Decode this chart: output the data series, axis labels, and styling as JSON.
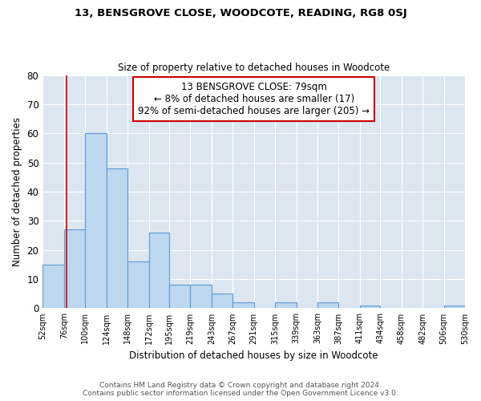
{
  "title": "13, BENSGROVE CLOSE, WOODCOTE, READING, RG8 0SJ",
  "subtitle": "Size of property relative to detached houses in Woodcote",
  "xlabel": "Distribution of detached houses by size in Woodcote",
  "ylabel": "Number of detached properties",
  "footnote1": "Contains HM Land Registry data © Crown copyright and database right 2024.",
  "footnote2": "Contains public sector information licensed under the Open Government Licence v3.0.",
  "bin_labels": [
    "52sqm",
    "76sqm",
    "100sqm",
    "124sqm",
    "148sqm",
    "172sqm",
    "195sqm",
    "219sqm",
    "243sqm",
    "267sqm",
    "291sqm",
    "315sqm",
    "339sqm",
    "363sqm",
    "387sqm",
    "411sqm",
    "434sqm",
    "458sqm",
    "482sqm",
    "506sqm",
    "530sqm"
  ],
  "bar_heights": [
    15,
    27,
    60,
    48,
    16,
    26,
    8,
    8,
    5,
    2,
    0,
    2,
    0,
    2,
    0,
    1,
    0,
    0,
    0,
    1,
    0
  ],
  "bar_color": "#bdd7ee",
  "bar_edge_color": "#5b9bd5",
  "bg_color": "#dce6f1",
  "ylim": [
    0,
    80
  ],
  "yticks": [
    0,
    10,
    20,
    30,
    40,
    50,
    60,
    70,
    80
  ],
  "property_line_x": 79,
  "property_line_color": "#cc0000",
  "annotation_text_line1": "13 BENSGROVE CLOSE: 79sqm",
  "annotation_text_line2": "← 8% of detached houses are smaller (17)",
  "annotation_text_line3": "92% of semi-detached houses are larger (205) →",
  "bin_edges": [
    52,
    76,
    100,
    124,
    148,
    172,
    195,
    219,
    243,
    267,
    291,
    315,
    339,
    363,
    387,
    411,
    434,
    458,
    482,
    506,
    530
  ]
}
